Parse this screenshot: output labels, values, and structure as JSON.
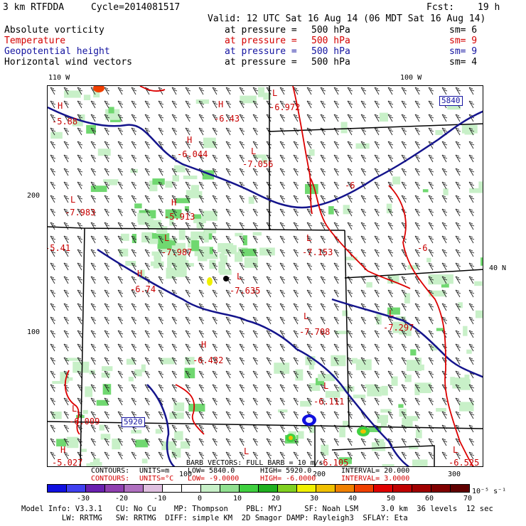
{
  "header": {
    "model": "3 km RTFDDA",
    "cycle": "Cycle=2014081517",
    "fcst_label": "Fcst:",
    "fcst_value": "19 h",
    "valid": "Valid: 12 UTC Sat 16 Aug 14 (06 MDT Sat 16 Aug 14)"
  },
  "fields": [
    {
      "name": "Absolute vorticity",
      "at": "at pressure =",
      "level": "500 hPa",
      "sm": "sm= 6",
      "color": "#000000"
    },
    {
      "name": "Temperature",
      "at": "at pressure =",
      "level": "500 hPa",
      "sm": "sm= 9",
      "color": "#d40000"
    },
    {
      "name": "Geopotential height",
      "at": "at pressure =",
      "level": "500 hPa",
      "sm": "sm= 9",
      "color": "#1414a0"
    },
    {
      "name": "Horizontal wind vectors",
      "at": "at pressure =",
      "level": "500 hPa",
      "sm": "sm= 4",
      "color": "#000000"
    }
  ],
  "axes": {
    "top_lon": [
      "110 W",
      "100 W"
    ],
    "left_y": [
      "200",
      "100"
    ],
    "right_lat": "40 N",
    "bottom_x": [
      "100",
      "200",
      "300"
    ]
  },
  "labels": [
    {
      "text": "H",
      "v": "-5.88"
    },
    {
      "text": "H",
      "v": "-6.43"
    },
    {
      "text": "L",
      "v": "-6.972"
    },
    {
      "text": "H",
      "v": "-6.044"
    },
    {
      "text": "L",
      "v": "-7.056"
    },
    {
      "text": "L",
      "v": "-7.983"
    },
    {
      "text": "H",
      "v": "-5.913"
    },
    {
      "text": "L",
      "v": "-7.987"
    },
    {
      "text": "L",
      "v": "-7.153"
    },
    {
      "text": "L",
      "v": "-5.41"
    },
    {
      "text": "H",
      "v": "-6.74"
    },
    {
      "text": "L",
      "v": "-7.635"
    },
    {
      "text": "L",
      "v": "-7.708"
    },
    {
      "text": "L",
      "v": "-7.297"
    },
    {
      "text": "H",
      "v": "-6.432"
    },
    {
      "text": "L",
      "v": "-6.111"
    },
    {
      "text": "L",
      "v": "-6.009"
    },
    {
      "text": "H",
      "v": "-5.027"
    },
    {
      "text": "L",
      "v": "-6.105"
    },
    {
      "text": "L",
      "v": "-6.525"
    },
    {
      "text": "",
      "v": "-6"
    },
    {
      "text": "",
      "v": "-6"
    }
  ],
  "height_contours": [
    "5840",
    "5920"
  ],
  "footer": {
    "barb_note": "BARB VECTORS: FULL BARB = 10 m/s",
    "contours1": {
      "label": "CONTOURS:",
      "units": "UNITS=m",
      "low": "LOW= 5840.0",
      "high": "HIGH= 5920.0",
      "interval": "INTERVAL= 20.000"
    },
    "contours2": {
      "label": "CONTOURS:",
      "units": "UNITS=°C",
      "low": "LOW= -9.0000",
      "high": "HIGH= -6.0000",
      "interval": "INTERVAL= 3.0000"
    },
    "colorbar_ticks": [
      "-30",
      "-20",
      "-10",
      "0",
      "10",
      "20",
      "30",
      "40",
      "50",
      "60",
      "70"
    ],
    "colorbar_units": "10⁻⁵ s⁻¹",
    "info1": "Model Info: V3.3.1   CU: No Cu    MP: Thompson    PBL: MYJ     SF: Noah LSM     3.0 km  36 levels  12 sec",
    "info2": "         LW: RRTMG   SW: RRTMG  DIFF: simple KM  2D Smagor DAMP: Rayleigh3  SFLAY: Eta"
  },
  "colorbar_colors": [
    "#1010e0",
    "#4040f0",
    "#6a20b0",
    "#9040b0",
    "#b070c0",
    "#e0c0e0",
    "#ffffff",
    "#ffffff",
    "#c8f0c8",
    "#90e090",
    "#40d040",
    "#20b020",
    "#80d020",
    "#f0f000",
    "#f0c000",
    "#f08000",
    "#f04000",
    "#e00000",
    "#c00000",
    "#a00000",
    "#800000",
    "#600000"
  ]
}
